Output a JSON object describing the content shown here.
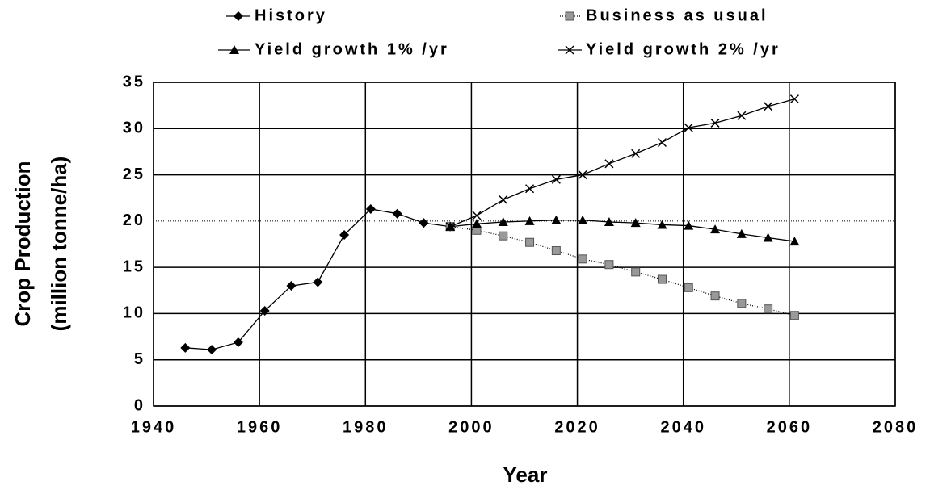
{
  "chart_data": {
    "type": "line",
    "xlabel": "Year",
    "ylabel": [
      "Crop Production",
      "(million tonne/ha)"
    ],
    "xlim": [
      1940,
      2080
    ],
    "xticks": [
      1940,
      1960,
      1980,
      2000,
      2020,
      2040,
      2060,
      2080
    ],
    "ylim": [
      0,
      35
    ],
    "yticks": [
      0,
      5,
      10,
      15,
      20,
      25,
      30,
      35
    ],
    "grid": true,
    "reference_line": {
      "y": 20,
      "style": "dotted"
    },
    "series": [
      {
        "name": "History",
        "color": "#000000",
        "marker": "diamond",
        "line": "solid",
        "x": [
          1946,
          1951,
          1956,
          1961,
          1966,
          1971,
          1976,
          1981,
          1986,
          1991,
          1996
        ],
        "values": [
          6.3,
          6.1,
          6.9,
          10.3,
          13.0,
          13.4,
          18.5,
          21.3,
          20.8,
          19.8,
          19.4
        ]
      },
      {
        "name": "Business as usual",
        "color": "#000000",
        "marker": "square",
        "line": "dotted",
        "x": [
          1996,
          2001,
          2006,
          2011,
          2016,
          2021,
          2026,
          2031,
          2036,
          2041,
          2046,
          2051,
          2056,
          2061
        ],
        "values": [
          19.4,
          19.0,
          18.4,
          17.7,
          16.8,
          15.9,
          15.3,
          14.5,
          13.7,
          12.8,
          11.9,
          11.1,
          10.5,
          9.8
        ]
      },
      {
        "name": "Yield growth 1% /yr",
        "color": "#000000",
        "marker": "triangle",
        "line": "solid",
        "x": [
          1996,
          2001,
          2006,
          2011,
          2016,
          2021,
          2026,
          2031,
          2036,
          2041,
          2046,
          2051,
          2056,
          2061
        ],
        "values": [
          19.4,
          19.7,
          19.9,
          20.0,
          20.1,
          20.1,
          19.9,
          19.8,
          19.6,
          19.5,
          19.1,
          18.6,
          18.2,
          17.8
        ]
      },
      {
        "name": "Yield growth 2% /yr",
        "color": "#000000",
        "marker": "x",
        "line": "solid",
        "x": [
          1996,
          2001,
          2006,
          2011,
          2016,
          2021,
          2026,
          2031,
          2036,
          2041,
          2046,
          2051,
          2056,
          2061
        ],
        "values": [
          19.4,
          20.6,
          22.3,
          23.5,
          24.5,
          25.0,
          26.2,
          27.3,
          28.5,
          30.1,
          30.6,
          31.4,
          32.4,
          33.2
        ]
      }
    ]
  }
}
